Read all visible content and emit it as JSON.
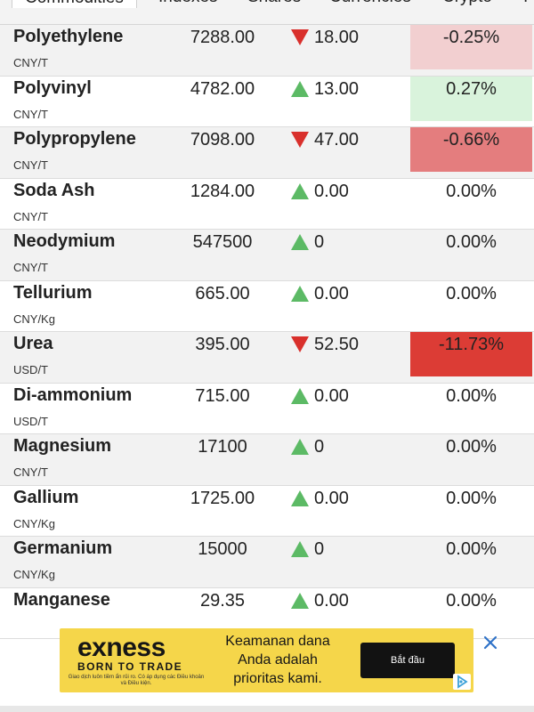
{
  "tabs": [
    {
      "label": "Commodities"
    },
    {
      "label": "Indexes"
    },
    {
      "label": "Shares"
    },
    {
      "label": "Currencies"
    },
    {
      "label": "Crypto"
    },
    {
      "label": "I"
    }
  ],
  "rows": [
    {
      "name": "Polyethylene",
      "unit": "CNY/T",
      "price": "7288.00",
      "direction": "down",
      "change": "18.00",
      "percent": "-0.25%",
      "percent_bg": "#f2cfd0",
      "shade": true
    },
    {
      "name": "Polyvinyl",
      "unit": "CNY/T",
      "price": "4782.00",
      "direction": "up",
      "change": "13.00",
      "percent": "0.27%",
      "percent_bg": "#d9f3dc",
      "shade": false
    },
    {
      "name": "Polypropylene",
      "unit": "CNY/T",
      "price": "7098.00",
      "direction": "down",
      "change": "47.00",
      "percent": "-0.66%",
      "percent_bg": "#e47d7e",
      "shade": true
    },
    {
      "name": "Soda Ash",
      "unit": "CNY/T",
      "price": "1284.00",
      "direction": "up",
      "change": "0.00",
      "percent": "0.00%",
      "percent_bg": "",
      "shade": false
    },
    {
      "name": "Neodymium",
      "unit": "CNY/T",
      "price": "547500",
      "direction": "up",
      "change": "0",
      "percent": "0.00%",
      "percent_bg": "",
      "shade": true
    },
    {
      "name": "Tellurium",
      "unit": "CNY/Kg",
      "price": "665.00",
      "direction": "up",
      "change": "0.00",
      "percent": "0.00%",
      "percent_bg": "",
      "shade": false
    },
    {
      "name": "Urea",
      "unit": "USD/T",
      "price": "395.00",
      "direction": "down",
      "change": "52.50",
      "percent": "-11.73%",
      "percent_bg": "#dc3c35",
      "shade": true
    },
    {
      "name": "Di-ammonium",
      "unit": "USD/T",
      "price": "715.00",
      "direction": "up",
      "change": "0.00",
      "percent": "0.00%",
      "percent_bg": "",
      "shade": false
    },
    {
      "name": "Magnesium",
      "unit": "CNY/T",
      "price": "17100",
      "direction": "up",
      "change": "0",
      "percent": "0.00%",
      "percent_bg": "",
      "shade": true
    },
    {
      "name": "Gallium",
      "unit": "CNY/Kg",
      "price": "1725.00",
      "direction": "up",
      "change": "0.00",
      "percent": "0.00%",
      "percent_bg": "",
      "shade": false
    },
    {
      "name": "Germanium",
      "unit": "CNY/Kg",
      "price": "15000",
      "direction": "up",
      "change": "0",
      "percent": "0.00%",
      "percent_bg": "",
      "shade": true
    },
    {
      "name": "Manganese",
      "unit": "",
      "price": "29.35",
      "direction": "up",
      "change": "0.00",
      "percent": "0.00%",
      "percent_bg": "",
      "shade": false
    }
  ],
  "colors": {
    "up_arrow": "#5cba65",
    "down_arrow": "#d9302c",
    "ad_background": "#f5d64a"
  },
  "ad": {
    "logo": "exness",
    "tagline": "BORN TO TRADE",
    "fine_print": "Giao dịch luôn tiềm ẩn rủi ro. Có áp dụng các Điều khoản và Điều kiện.",
    "message_line1": "Keamanan dana",
    "message_line2": "Anda adalah",
    "message_line3": "prioritas kami.",
    "cta_label": "Bắt đầu"
  }
}
